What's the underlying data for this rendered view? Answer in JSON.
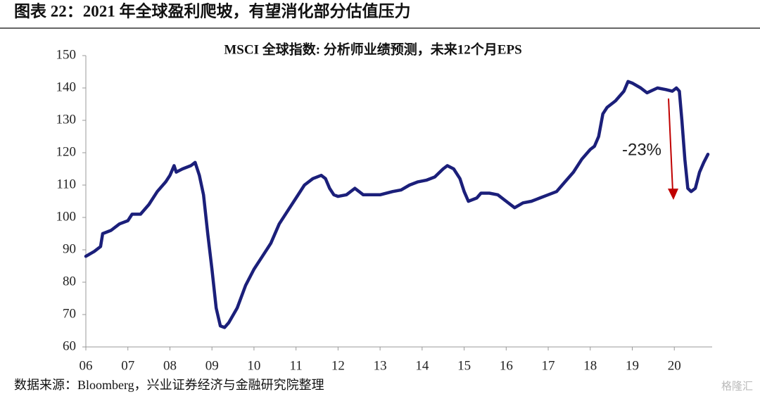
{
  "header": {
    "title": "图表 22：2021 年全球盈利爬坡，有望消化部分估值压力"
  },
  "chart_data": {
    "type": "line",
    "title": "MSCI 全球指数: 分析师业绩预测，未来12个月EPS",
    "annotation": "-23%",
    "x": [
      6.0,
      6.2,
      6.35,
      6.4,
      6.6,
      6.8,
      7.0,
      7.1,
      7.3,
      7.5,
      7.7,
      7.9,
      8.0,
      8.1,
      8.15,
      8.3,
      8.5,
      8.6,
      8.7,
      8.8,
      8.9,
      9.0,
      9.1,
      9.2,
      9.3,
      9.4,
      9.6,
      9.8,
      10.0,
      10.2,
      10.4,
      10.6,
      10.8,
      11.0,
      11.2,
      11.4,
      11.6,
      11.7,
      11.8,
      11.9,
      12.0,
      12.2,
      12.4,
      12.6,
      12.8,
      13.0,
      13.3,
      13.5,
      13.7,
      13.9,
      14.1,
      14.3,
      14.5,
      14.6,
      14.75,
      14.9,
      15.0,
      15.1,
      15.3,
      15.4,
      15.6,
      15.8,
      16.0,
      16.2,
      16.4,
      16.6,
      16.8,
      17.0,
      17.2,
      17.4,
      17.6,
      17.8,
      18.0,
      18.1,
      18.2,
      18.3,
      18.4,
      18.6,
      18.8,
      18.9,
      19.0,
      19.2,
      19.35,
      19.6,
      19.8,
      19.95,
      20.05,
      20.12,
      20.18,
      20.25,
      20.32,
      20.4,
      20.5,
      20.6,
      20.7,
      20.8
    ],
    "series": [
      {
        "name": "MSCI 全球指数",
        "color": "#1b1f7a",
        "values": [
          88,
          89.5,
          91,
          95,
          96,
          98,
          99,
          101,
          101,
          104,
          108,
          111,
          113,
          116,
          114,
          115,
          116,
          117,
          113,
          107,
          95,
          84,
          72,
          66.5,
          66,
          67.5,
          72,
          79,
          84,
          88,
          92,
          98,
          102,
          106,
          110,
          112,
          113,
          112,
          109,
          107,
          106.5,
          107,
          109,
          107,
          107,
          107,
          108,
          108.5,
          110,
          111,
          111.5,
          112.5,
          115,
          116,
          115,
          112,
          108,
          105,
          106,
          107.5,
          107.5,
          107,
          105,
          103,
          104.5,
          105,
          106,
          107,
          108,
          111,
          114,
          118,
          121,
          122,
          125,
          132,
          134,
          136,
          139,
          142,
          141.5,
          140,
          138.5,
          140,
          139.5,
          139,
          140,
          139,
          130,
          118,
          109,
          108,
          109,
          114,
          117,
          119.5
        ]
      }
    ],
    "xlim": [
      6,
      20.9
    ],
    "xticks": [
      {
        "value": 6,
        "label": "06"
      },
      {
        "value": 7,
        "label": "07"
      },
      {
        "value": 8,
        "label": "08"
      },
      {
        "value": 9,
        "label": "09"
      },
      10,
      11,
      12,
      13,
      14,
      15,
      16,
      17,
      18,
      19,
      20
    ],
    "ylim": [
      60,
      150
    ],
    "yticks": [
      60,
      70,
      80,
      90,
      100,
      110,
      120,
      130,
      140,
      150
    ],
    "grid": false
  },
  "footer": {
    "source": "数据来源：Bloomberg，兴业证券经济与金融研究院整理",
    "watermark": "格隆汇"
  }
}
